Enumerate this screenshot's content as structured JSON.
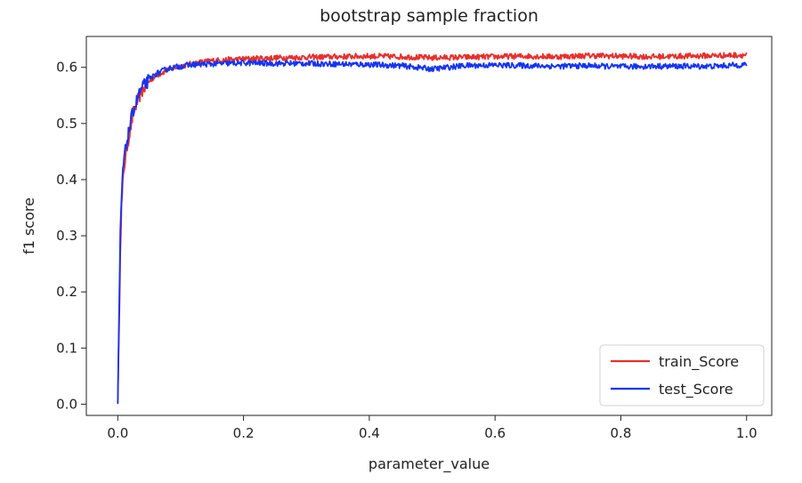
{
  "chart_data": {
    "type": "line",
    "title": "bootstrap sample fraction",
    "xlabel": "parameter_value",
    "ylabel": "f1 score",
    "xlim": [
      -0.05,
      1.04
    ],
    "ylim": [
      -0.02,
      0.655
    ],
    "xticks": [
      0.0,
      0.2,
      0.4,
      0.6,
      0.8,
      1.0
    ],
    "xtick_labels": [
      "0.0",
      "0.2",
      "0.4",
      "0.6",
      "0.8",
      "1.0"
    ],
    "yticks": [
      0.0,
      0.1,
      0.2,
      0.3,
      0.4,
      0.5,
      0.6
    ],
    "ytick_labels": [
      "0.0",
      "0.1",
      "0.2",
      "0.3",
      "0.4",
      "0.5",
      "0.6"
    ],
    "grid": false,
    "legend_position": "lower-right",
    "series": [
      {
        "name": "train_Score",
        "color": "#e8302c",
        "x": [
          0.0,
          0.002,
          0.004,
          0.006,
          0.008,
          0.01,
          0.012,
          0.015,
          0.02,
          0.025,
          0.03,
          0.035,
          0.04,
          0.05,
          0.06,
          0.07,
          0.08,
          0.1,
          0.12,
          0.15,
          0.2,
          0.25,
          0.3,
          0.35,
          0.4,
          0.45,
          0.5,
          0.55,
          0.6,
          0.65,
          0.7,
          0.75,
          0.8,
          0.85,
          0.9,
          0.95,
          1.0
        ],
        "values": [
          0.01,
          0.12,
          0.28,
          0.35,
          0.39,
          0.42,
          0.44,
          0.46,
          0.49,
          0.52,
          0.535,
          0.55,
          0.56,
          0.575,
          0.585,
          0.59,
          0.596,
          0.602,
          0.607,
          0.612,
          0.615,
          0.617,
          0.618,
          0.619,
          0.62,
          0.619,
          0.617,
          0.618,
          0.619,
          0.62,
          0.619,
          0.621,
          0.62,
          0.619,
          0.62,
          0.621,
          0.622
        ]
      },
      {
        "name": "test_Score",
        "color": "#1434f5",
        "x": [
          0.0,
          0.002,
          0.004,
          0.006,
          0.008,
          0.01,
          0.012,
          0.015,
          0.02,
          0.025,
          0.03,
          0.035,
          0.04,
          0.05,
          0.06,
          0.07,
          0.08,
          0.1,
          0.12,
          0.15,
          0.2,
          0.25,
          0.3,
          0.35,
          0.4,
          0.45,
          0.5,
          0.55,
          0.6,
          0.65,
          0.7,
          0.75,
          0.8,
          0.85,
          0.9,
          0.95,
          1.0
        ],
        "values": [
          0.0,
          0.15,
          0.3,
          0.37,
          0.41,
          0.44,
          0.45,
          0.47,
          0.5,
          0.525,
          0.54,
          0.555,
          0.565,
          0.578,
          0.588,
          0.593,
          0.598,
          0.602,
          0.605,
          0.606,
          0.608,
          0.607,
          0.607,
          0.606,
          0.605,
          0.603,
          0.597,
          0.603,
          0.604,
          0.603,
          0.602,
          0.603,
          0.601,
          0.602,
          0.602,
          0.602,
          0.605
        ]
      }
    ]
  }
}
